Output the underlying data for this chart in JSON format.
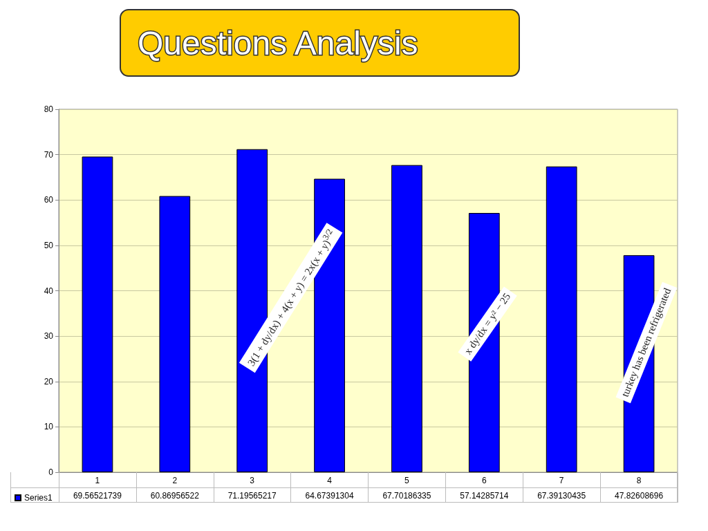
{
  "chart_data": {
    "type": "bar",
    "title": "Questions Analysis",
    "categories": [
      "1",
      "2",
      "3",
      "4",
      "5",
      "6",
      "7",
      "8"
    ],
    "series": [
      {
        "name": "Series1",
        "color": "#0000ff",
        "values": [
          69.56521739,
          60.86956522,
          71.19565217,
          64.67391304,
          67.70186335,
          57.14285714,
          67.39130435,
          47.82608696
        ]
      }
    ],
    "ylim": [
      0,
      80
    ],
    "yticks": [
      0,
      10,
      20,
      30,
      40,
      50,
      60,
      70,
      80
    ],
    "grid": "y",
    "legend": "bottom left",
    "data_labels": true,
    "annotations": [
      "3(1 + dy/dx) + 4(x + y) = 2x(x + y)$^{3/2}$",
      "x dy/dx = y² − 25",
      "turkey has been refrigerated"
    ]
  }
}
